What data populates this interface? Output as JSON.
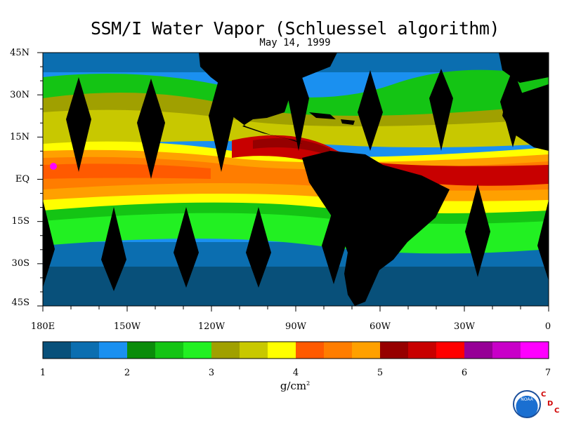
{
  "title": "SSM/I Water Vapor (Schluessel algorithm)",
  "subtitle": "May 14, 1999",
  "lat_labels": [
    "45N",
    "30N",
    "15N",
    "EQ",
    "15S",
    "30S",
    "45S"
  ],
  "lon_labels": [
    "180E",
    "150W",
    "120W",
    "90W",
    "60W",
    "30W",
    "0"
  ],
  "colorbar": {
    "colors": [
      "#08507a",
      "#0b6eb0",
      "#1a90f0",
      "#0a8c0a",
      "#14c414",
      "#22f022",
      "#a0a000",
      "#c8c800",
      "#ffff00",
      "#ff5a00",
      "#ff7d00",
      "#ffa000",
      "#960000",
      "#c80000",
      "#ff0000",
      "#960096",
      "#c800c8",
      "#ff00ff"
    ],
    "tick_labels": [
      "1",
      "2",
      "3",
      "4",
      "5",
      "6",
      "7"
    ],
    "units_label": "g/cm",
    "units_superscript": "2"
  },
  "logo": {
    "text": "NOAA"
  },
  "cdc_letters": [
    "C",
    "D",
    "C"
  ]
}
